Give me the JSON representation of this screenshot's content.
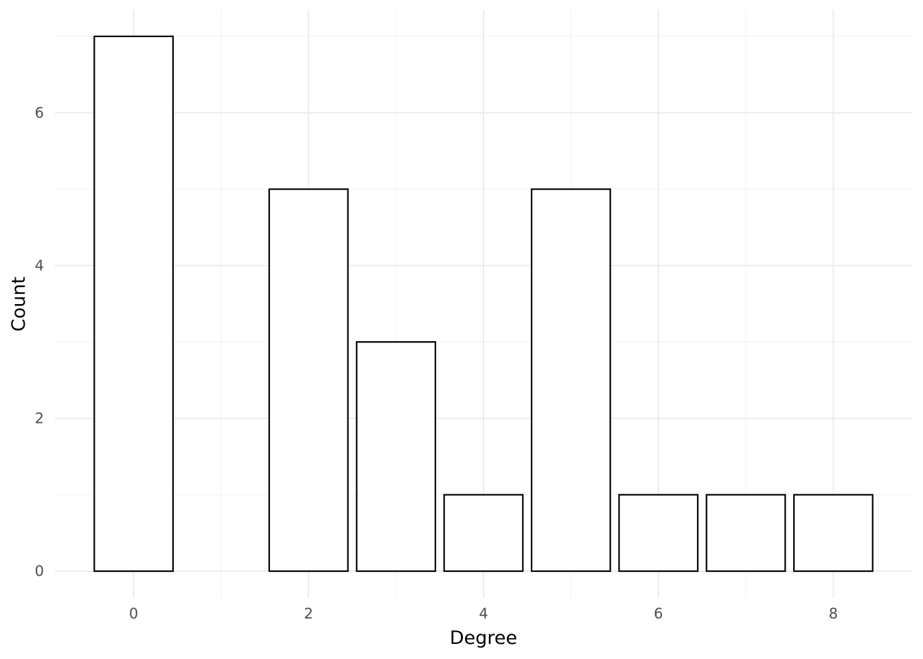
{
  "chart_data": {
    "type": "bar",
    "x": [
      0,
      2,
      3,
      4,
      5,
      6,
      7,
      8
    ],
    "values": [
      7,
      5,
      3,
      1,
      5,
      1,
      1,
      1
    ],
    "xlabel": "Degree",
    "ylabel": "Count",
    "xlim": [
      -0.9,
      8.9
    ],
    "ylim": [
      -0.35,
      7.35
    ],
    "xticks": [
      0,
      2,
      4,
      6,
      8
    ],
    "yticks": [
      0,
      2,
      4,
      6
    ],
    "grid": true,
    "legend": "none",
    "colors": {
      "bar_fill": "#ffffff",
      "bar_stroke": "#000000"
    }
  }
}
